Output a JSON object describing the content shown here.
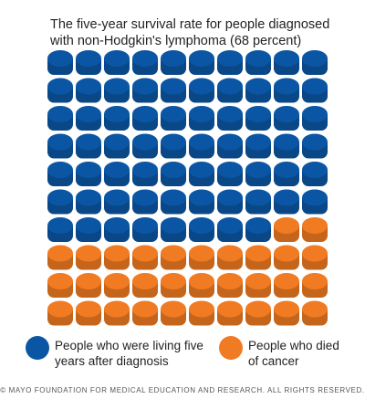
{
  "chart_data": {
    "type": "waffle",
    "title": "The five-year survival rate for people diagnosed with non-Hodgkin's lymphoma (68 percent)",
    "series": [
      {
        "name": "People who were living five years after diagnosis",
        "color": "#0b56a4",
        "values": [
          68
        ]
      },
      {
        "name": "People who died of cancer",
        "color": "#f07b22",
        "values": [
          32
        ]
      }
    ],
    "footer": "© MAYO FOUNDATION FOR MEDICAL EDUCATION AND RESEARCH. ALL RIGHTS RESERVED."
  }
}
